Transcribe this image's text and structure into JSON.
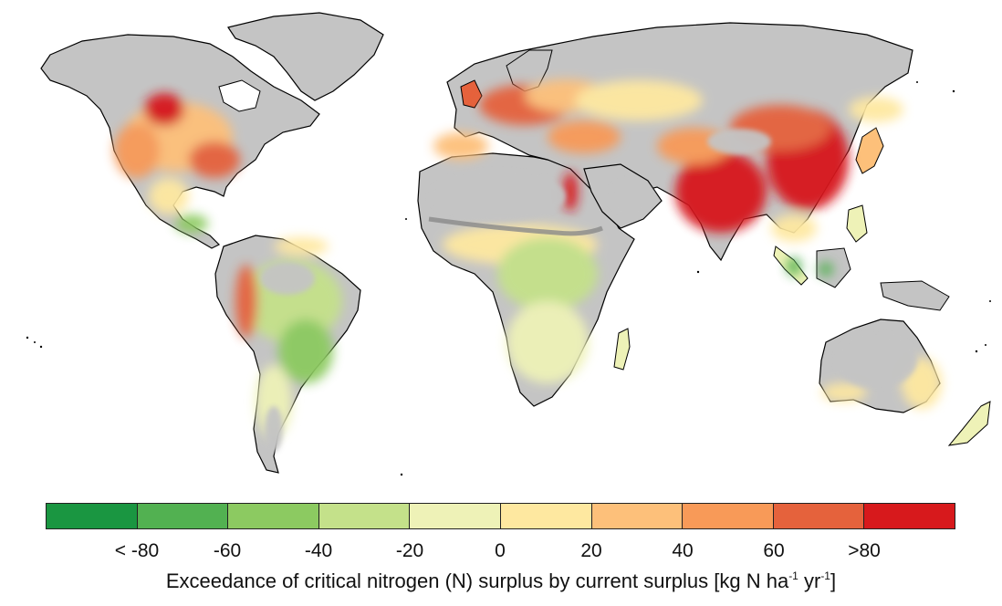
{
  "legend": {
    "colors": [
      "#1a9641",
      "#52b151",
      "#8cca61",
      "#c4e18a",
      "#eef2b7",
      "#fee8a0",
      "#fdc07a",
      "#f89a58",
      "#e5623c",
      "#d7191c"
    ],
    "tick_labels": [
      "< -80",
      "-60",
      "-40",
      "-20",
      "0",
      "20",
      "40",
      "60",
      ">80"
    ],
    "caption_prefix": "Exceedance of critical nitrogen (N) surplus by current surplus [kg N ha",
    "caption_exp1": "-1",
    "caption_mid": " yr",
    "caption_exp2": "-1",
    "caption_suffix": "]"
  },
  "map": {
    "land_no_data_color": "#c4c4c4",
    "dark_no_data_color": "#8a8a8a",
    "outline_color": "#000000",
    "regions": [
      {
        "name": "north-america",
        "color": "#c4c4c4"
      },
      {
        "name": "greenland",
        "color": "#c4c4c4"
      },
      {
        "name": "south-america",
        "color": "#c4c4c4"
      },
      {
        "name": "africa",
        "color": "#c4c4c4"
      },
      {
        "name": "eurasia",
        "color": "#c4c4c4"
      },
      {
        "name": "australia",
        "color": "#c4c4c4"
      }
    ]
  }
}
